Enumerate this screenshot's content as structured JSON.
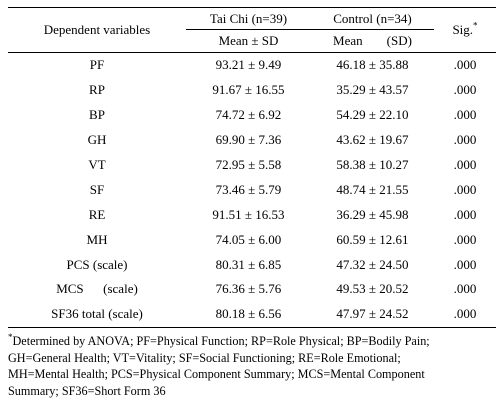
{
  "table": {
    "headers": {
      "dependent": "Dependent variables",
      "group1": "Tai Chi (n=39)",
      "group2": "Control (n=34)",
      "group1_sub": "Mean ± SD",
      "group2_sub_mean": "Mean",
      "group2_sub_sd": "(SD)",
      "sig": "Sig.",
      "sig_marker": "*"
    },
    "rows": [
      {
        "variable": "PF",
        "taichi": "93.21 ± 9.49",
        "control": "46.18 ± 35.88",
        "sig": ".000"
      },
      {
        "variable": "RP",
        "taichi": "91.67 ± 16.55",
        "control": "35.29 ± 43.57",
        "sig": ".000"
      },
      {
        "variable": "BP",
        "taichi": "74.72 ± 6.92",
        "control": "54.29 ± 22.10",
        "sig": ".000"
      },
      {
        "variable": "GH",
        "taichi": "69.90 ± 7.36",
        "control": "43.62 ± 19.67",
        "sig": ".000"
      },
      {
        "variable": "VT",
        "taichi": "72.95 ± 5.58",
        "control": "58.38 ± 10.27",
        "sig": ".000"
      },
      {
        "variable": "SF",
        "taichi": "73.46 ± 5.79",
        "control": "48.74 ± 21.55",
        "sig": ".000"
      },
      {
        "variable": "RE",
        "taichi": "91.51 ± 16.53",
        "control": "36.29 ± 45.98",
        "sig": ".000"
      },
      {
        "variable": "MH",
        "taichi": "74.05 ± 6.00",
        "control": "60.59 ± 12.61",
        "sig": ".000"
      },
      {
        "variable": "PCS (scale)",
        "taichi": "80.31 ± 6.85",
        "control": "47.32 ± 24.50",
        "sig": ".000"
      },
      {
        "variable": "MCS      (scale)",
        "taichi": "76.36 ± 5.76",
        "control": "49.53 ± 20.52",
        "sig": ".000"
      },
      {
        "variable": "SF36 total (scale)",
        "taichi": "80.18 ± 6.56",
        "control": "47.97 ± 24.52",
        "sig": ".000"
      }
    ]
  },
  "footnote": {
    "marker": "*",
    "lines": [
      "Determined by ANOVA; PF=Physical Function; RP=Role Physical; BP=Bodily Pain;",
      "GH=General Health; VT=Vitality; SF=Social Functioning; RE=Role Emotional;",
      "MH=Mental Health; PCS=Physical Component Summary; MCS=Mental Component",
      "Summary; SF36=Short Form 36"
    ]
  }
}
